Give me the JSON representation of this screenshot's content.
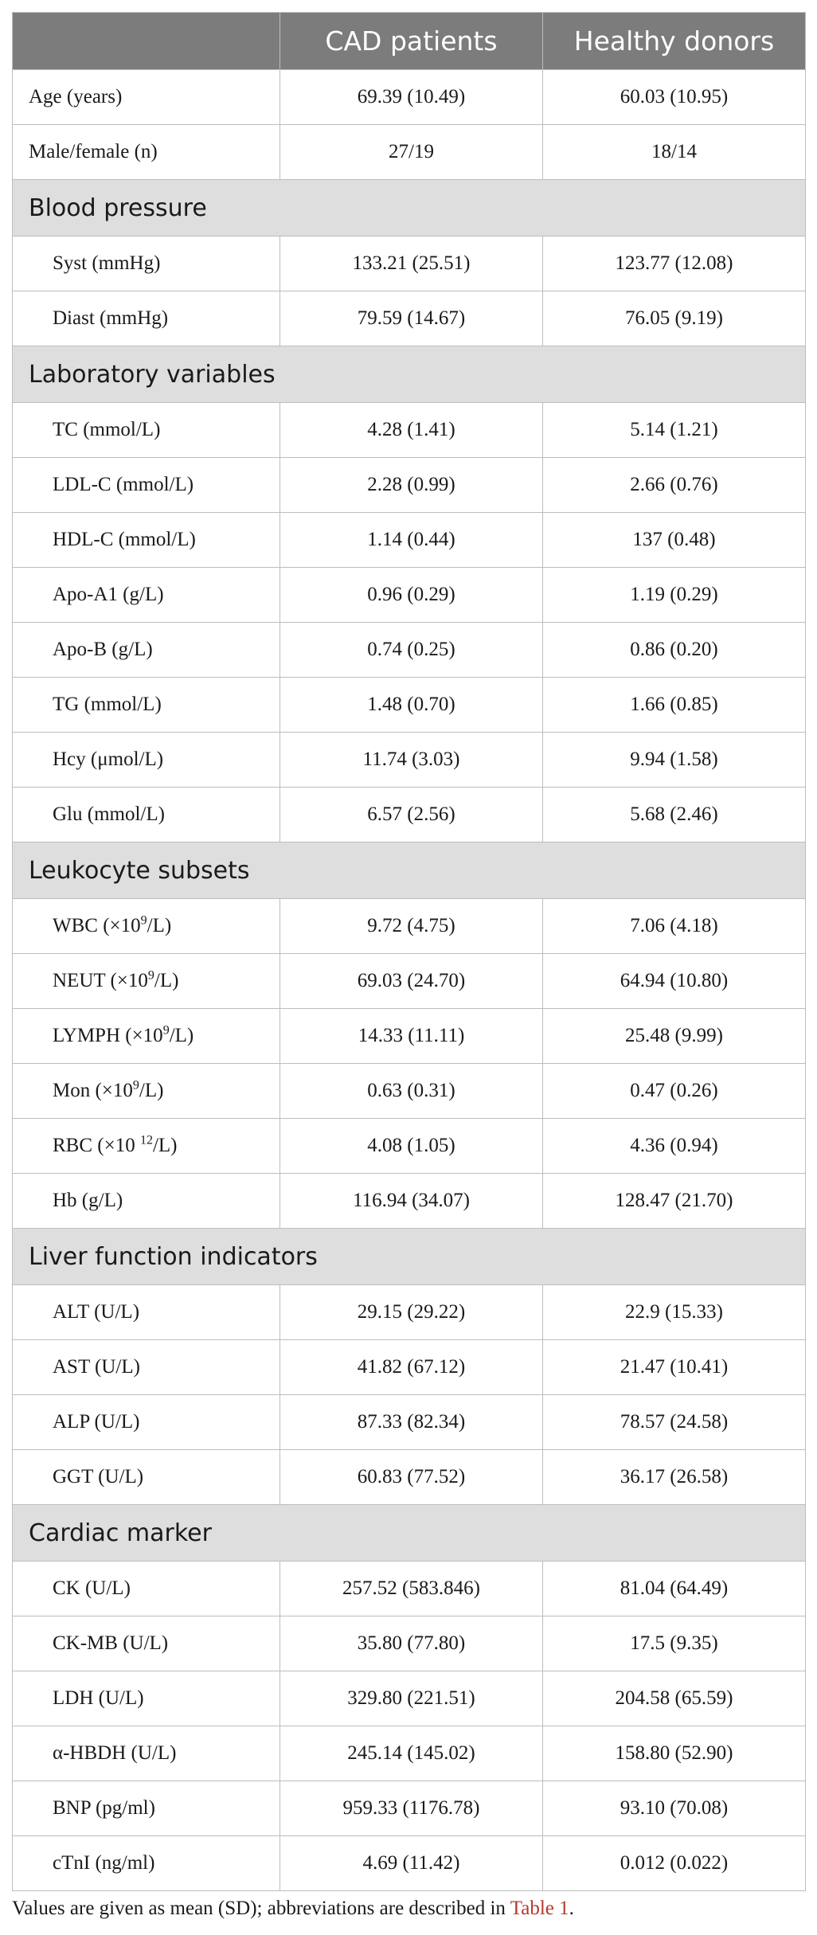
{
  "columns": [
    "",
    "CAD patients",
    "Healthy donors"
  ],
  "top_rows": [
    {
      "label": "Age (years)",
      "cad": "69.39 (10.49)",
      "healthy": "60.03 (10.95)"
    },
    {
      "label": "Male/female (n)",
      "cad": "27/19",
      "healthy": "18/14"
    }
  ],
  "sections": [
    {
      "title": "Blood pressure",
      "rows": [
        {
          "label": "Syst (mmHg)",
          "cad": "133.21 (25.51)",
          "healthy": "123.77 (12.08)"
        },
        {
          "label": "Diast (mmHg)",
          "cad": "79.59 (14.67)",
          "healthy": "76.05 (9.19)"
        }
      ]
    },
    {
      "title": "Laboratory variables",
      "rows": [
        {
          "label": "TC (mmol/L)",
          "cad": "4.28 (1.41)",
          "healthy": "5.14 (1.21)"
        },
        {
          "label": "LDL-C (mmol/L)",
          "cad": "2.28 (0.99)",
          "healthy": "2.66 (0.76)"
        },
        {
          "label": "HDL-C (mmol/L)",
          "cad": "1.14 (0.44)",
          "healthy": "137 (0.48)"
        },
        {
          "label": "Apo-A1 (g/L)",
          "cad": "0.96 (0.29)",
          "healthy": "1.19 (0.29)"
        },
        {
          "label": "Apo-B (g/L)",
          "cad": "0.74 (0.25)",
          "healthy": "0.86 (0.20)"
        },
        {
          "label": "TG (mmol/L)",
          "cad": "1.48 (0.70)",
          "healthy": "1.66 (0.85)"
        },
        {
          "label": "Hcy (μmol/L)",
          "cad": "11.74 (3.03)",
          "healthy": "9.94 (1.58)"
        },
        {
          "label": "Glu (mmol/L)",
          "cad": "6.57 (2.56)",
          "healthy": "5.68 (2.46)"
        }
      ]
    },
    {
      "title": "Leukocyte subsets",
      "rows": [
        {
          "label_pre": "WBC (×10",
          "label_sup": "9",
          "label_post": "/L)",
          "cad": "9.72 (4.75)",
          "healthy": "7.06 (4.18)"
        },
        {
          "label_pre": "NEUT (×10",
          "label_sup": "9",
          "label_post": "/L)",
          "cad": "69.03 (24.70)",
          "healthy": "64.94 (10.80)"
        },
        {
          "label_pre": "LYMPH (×10",
          "label_sup": "9",
          "label_post": "/L)",
          "cad": "14.33 (11.11)",
          "healthy": "25.48 (9.99)"
        },
        {
          "label_pre": "Mon (×10",
          "label_sup": "9",
          "label_post": "/L)",
          "cad": "0.63 (0.31)",
          "healthy": "0.47 (0.26)"
        },
        {
          "label_pre": "RBC (×10 ",
          "label_sup": "12",
          "label_post": "/L)",
          "cad": "4.08 (1.05)",
          "healthy": "4.36 (0.94)"
        },
        {
          "label": "Hb (g/L)",
          "cad": "116.94 (34.07)",
          "healthy": "128.47 (21.70)"
        }
      ]
    },
    {
      "title": "Liver function indicators",
      "rows": [
        {
          "label": "ALT (U/L)",
          "cad": "29.15 (29.22)",
          "healthy": "22.9 (15.33)"
        },
        {
          "label": "AST (U/L)",
          "cad": "41.82 (67.12)",
          "healthy": "21.47 (10.41)"
        },
        {
          "label": "ALP (U/L)",
          "cad": "87.33 (82.34)",
          "healthy": "78.57 (24.58)"
        },
        {
          "label": "GGT (U/L)",
          "cad": "60.83 (77.52)",
          "healthy": "36.17 (26.58)"
        }
      ]
    },
    {
      "title": "Cardiac marker",
      "rows": [
        {
          "label": "CK (U/L)",
          "cad": "257.52 (583.846)",
          "healthy": "81.04 (64.49)"
        },
        {
          "label": "CK-MB (U/L)",
          "cad": "35.80 (77.80)",
          "healthy": "17.5 (9.35)"
        },
        {
          "label": "LDH (U/L)",
          "cad": "329.80 (221.51)",
          "healthy": "204.58 (65.59)"
        },
        {
          "label": "α-HBDH (U/L)",
          "cad": "245.14 (145.02)",
          "healthy": "158.80 (52.90)"
        },
        {
          "label": "BNP (pg/ml)",
          "cad": "959.33 (1176.78)",
          "healthy": "93.10 (70.08)"
        },
        {
          "label": "cTnI (ng/ml)",
          "cad": "4.69 (11.42)",
          "healthy": "0.012 (0.022)"
        }
      ]
    }
  ],
  "footnote": {
    "text": "Values are given as mean (SD); abbreviations are described in ",
    "link": "Table 1",
    "end": "."
  },
  "colors": {
    "header_bg": "#7c7c7c",
    "section_bg": "#dedede",
    "link": "#b33a2e"
  }
}
